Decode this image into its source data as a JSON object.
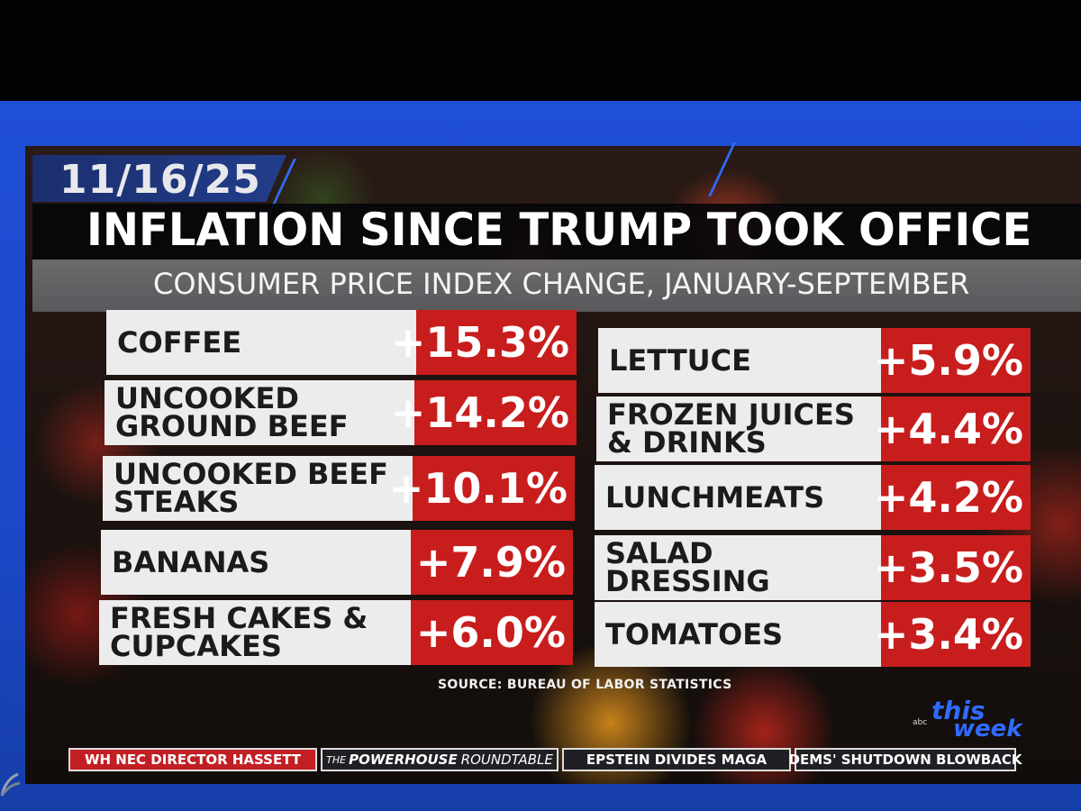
{
  "date": "11/16/25",
  "title": "INFLATION SINCE TRUMP TOOK OFFICE",
  "subtitle": "CONSUMER PRICE INDEX CHANGE, JANUARY-SEPTEMBER",
  "left_items": [
    {
      "label": "COFFEE",
      "value": "+15.3%"
    },
    {
      "label": "UNCOOKED GROUND BEEF",
      "value": "+14.2%"
    },
    {
      "label": "UNCOOKED BEEF STEAKS",
      "value": "+10.1%"
    },
    {
      "label": "BANANAS",
      "value": "+7.9%"
    },
    {
      "label": "FRESH CAKES & CUPCAKES",
      "value": "+6.0%"
    }
  ],
  "right_items": [
    {
      "label": "LETTUCE",
      "value": "+5.9%"
    },
    {
      "label": "FROZEN JUICES & DRINKS",
      "value": "+4.4%"
    },
    {
      "label": "LUNCHMEATS",
      "value": "+4.2%"
    },
    {
      "label": "SALAD DRESSING",
      "value": "+3.5%"
    },
    {
      "label": "TOMATOES",
      "value": "+3.4%"
    }
  ],
  "source": "SOURCE: BUREAU OF LABOR STATISTICS",
  "ticker": {
    "item1": "WH NEC DIRECTOR HASSETT",
    "item2_prefix": "THE",
    "item2_bold": "POWERHOUSE",
    "item2_suffix": "ROUNDTABLE",
    "item3": "EPSTEIN DIVIDES MAGA",
    "item4": "DEMS' SHUTDOWN BLOWBACK"
  },
  "show_logo": {
    "network": "abc",
    "this": "this",
    "week": "week"
  },
  "colors": {
    "accent_red": "#c81d1d",
    "frame_blue": "#1f4fd6",
    "label_bg": "#ececec"
  }
}
